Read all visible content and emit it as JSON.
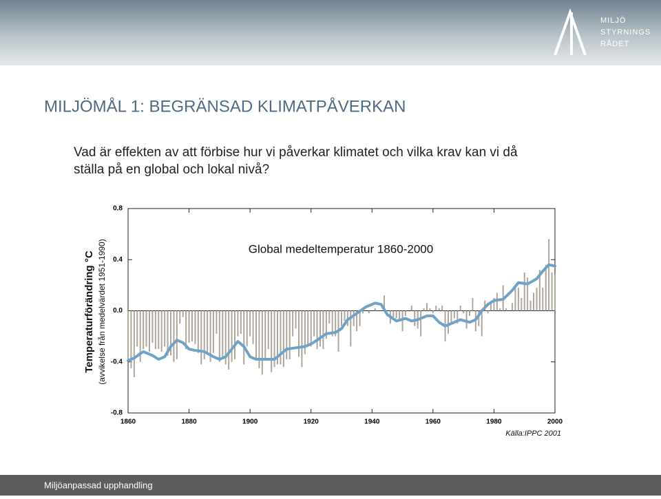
{
  "logo": {
    "lines": [
      "MILJÖ",
      "STYRNINGS",
      "RÅDET"
    ]
  },
  "slide_title": "MILJÖMÅL 1: BEGRÄNSAD KLIMATPÅVERKAN",
  "body": [
    "Vad är effekten av att förbise hur vi påverkar klimatet och vilka krav kan vi då",
    "ställa på en global och lokal nivå?"
  ],
  "footer": "Miljöanpassad upphandling",
  "chart_data": {
    "type": "bar",
    "title": "Global medeltemperatur 1860-2000",
    "ylabel": "Temperaturförändring °C",
    "ylabel2": "(avvikelse från medelvärdet 1951-1990)",
    "source": "Källa:IPPC 2001",
    "x": [
      1860,
      1861,
      1862,
      1863,
      1864,
      1865,
      1866,
      1867,
      1868,
      1869,
      1870,
      1871,
      1872,
      1873,
      1874,
      1875,
      1876,
      1877,
      1878,
      1879,
      1880,
      1881,
      1882,
      1883,
      1884,
      1885,
      1886,
      1887,
      1888,
      1889,
      1890,
      1891,
      1892,
      1893,
      1894,
      1895,
      1896,
      1897,
      1898,
      1899,
      1900,
      1901,
      1902,
      1903,
      1904,
      1905,
      1906,
      1907,
      1908,
      1909,
      1910,
      1911,
      1912,
      1913,
      1914,
      1915,
      1916,
      1917,
      1918,
      1919,
      1920,
      1921,
      1922,
      1923,
      1924,
      1925,
      1926,
      1927,
      1928,
      1929,
      1930,
      1931,
      1932,
      1933,
      1934,
      1935,
      1936,
      1937,
      1938,
      1939,
      1940,
      1941,
      1942,
      1943,
      1944,
      1945,
      1946,
      1947,
      1948,
      1949,
      1950,
      1951,
      1952,
      1953,
      1954,
      1955,
      1956,
      1957,
      1958,
      1959,
      1960,
      1961,
      1962,
      1963,
      1964,
      1965,
      1966,
      1967,
      1968,
      1969,
      1970,
      1971,
      1972,
      1973,
      1974,
      1975,
      1976,
      1977,
      1978,
      1979,
      1980,
      1981,
      1982,
      1983,
      1984,
      1985,
      1986,
      1987,
      1988,
      1989,
      1990,
      1991,
      1992,
      1993,
      1994,
      1995,
      1996,
      1997,
      1998,
      1999,
      2000
    ],
    "series": [
      {
        "color": "#aea59b",
        "values": [
          -0.38,
          -0.45,
          -0.52,
          -0.28,
          -0.4,
          -0.3,
          -0.28,
          -0.32,
          -0.25,
          -0.3,
          -0.3,
          -0.32,
          -0.28,
          -0.35,
          -0.35,
          -0.4,
          -0.38,
          -0.1,
          -0.05,
          -0.3,
          -0.25,
          -0.24,
          -0.26,
          -0.33,
          -0.42,
          -0.38,
          -0.33,
          -0.4,
          -0.33,
          -0.18,
          -0.4,
          -0.36,
          -0.42,
          -0.46,
          -0.4,
          -0.38,
          -0.2,
          -0.18,
          -0.42,
          -0.28,
          -0.2,
          -0.26,
          -0.38,
          -0.45,
          -0.5,
          -0.38,
          -0.3,
          -0.48,
          -0.44,
          -0.42,
          -0.42,
          -0.44,
          -0.38,
          -0.38,
          -0.2,
          -0.14,
          -0.36,
          -0.44,
          -0.34,
          -0.28,
          -0.28,
          -0.2,
          -0.3,
          -0.28,
          -0.3,
          -0.22,
          -0.1,
          -0.2,
          -0.2,
          -0.32,
          -0.12,
          -0.08,
          -0.12,
          -0.28,
          -0.12,
          -0.16,
          -0.12,
          -0.02,
          0.0,
          -0.02,
          0.0,
          0.02,
          0.0,
          0.0,
          0.12,
          0.0,
          -0.1,
          -0.05,
          -0.06,
          -0.08,
          -0.16,
          -0.04,
          0.0,
          0.04,
          -0.12,
          -0.14,
          -0.2,
          0.02,
          0.06,
          0.02,
          -0.02,
          0.04,
          0.02,
          0.04,
          -0.24,
          -0.18,
          -0.1,
          -0.06,
          -0.1,
          0.04,
          -0.02,
          -0.14,
          -0.04,
          0.1,
          -0.16,
          -0.12,
          -0.2,
          0.08,
          -0.02,
          0.06,
          0.1,
          0.14,
          0.02,
          0.2,
          0.02,
          0.0,
          0.06,
          0.18,
          0.18,
          0.1,
          0.3,
          0.26,
          0.08,
          0.14,
          0.18,
          0.32,
          0.18,
          0.36,
          0.56,
          0.3,
          0.28
        ]
      },
      {
        "type": "line",
        "color": "#6ea2c6",
        "x": [
          1860,
          1862,
          1865,
          1868,
          1870,
          1872,
          1874,
          1876,
          1878,
          1880,
          1882,
          1885,
          1888,
          1890,
          1892,
          1894,
          1896,
          1898,
          1900,
          1902,
          1905,
          1908,
          1910,
          1912,
          1915,
          1918,
          1920,
          1922,
          1925,
          1928,
          1930,
          1932,
          1935,
          1938,
          1941,
          1943,
          1945,
          1948,
          1951,
          1953,
          1955,
          1958,
          1960,
          1962,
          1964,
          1966,
          1969,
          1972,
          1974,
          1976,
          1978,
          1980,
          1983,
          1986,
          1988,
          1991,
          1994,
          1996,
          1998,
          2000
        ],
        "values": [
          -0.39,
          -0.37,
          -0.32,
          -0.35,
          -0.38,
          -0.36,
          -0.28,
          -0.23,
          -0.25,
          -0.3,
          -0.31,
          -0.32,
          -0.36,
          -0.38,
          -0.36,
          -0.3,
          -0.24,
          -0.28,
          -0.36,
          -0.38,
          -0.38,
          -0.38,
          -0.34,
          -0.3,
          -0.29,
          -0.28,
          -0.26,
          -0.23,
          -0.18,
          -0.17,
          -0.14,
          -0.07,
          -0.02,
          0.03,
          0.06,
          0.05,
          -0.03,
          -0.08,
          -0.06,
          -0.08,
          -0.07,
          -0.04,
          -0.04,
          -0.09,
          -0.12,
          -0.1,
          -0.07,
          -0.09,
          -0.07,
          0.0,
          0.05,
          0.08,
          0.09,
          0.16,
          0.22,
          0.21,
          0.25,
          0.31,
          0.36,
          0.35
        ]
      }
    ],
    "xlim": [
      1860,
      2000
    ],
    "xticks": [
      1860,
      1880,
      1900,
      1920,
      1940,
      1960,
      1980,
      2000
    ],
    "ylim": [
      -0.8,
      0.8
    ],
    "yticks": [
      -0.8,
      -0.4,
      {
        "value": 0,
        "label": "0.0"
      },
      0.4,
      0.8
    ]
  }
}
